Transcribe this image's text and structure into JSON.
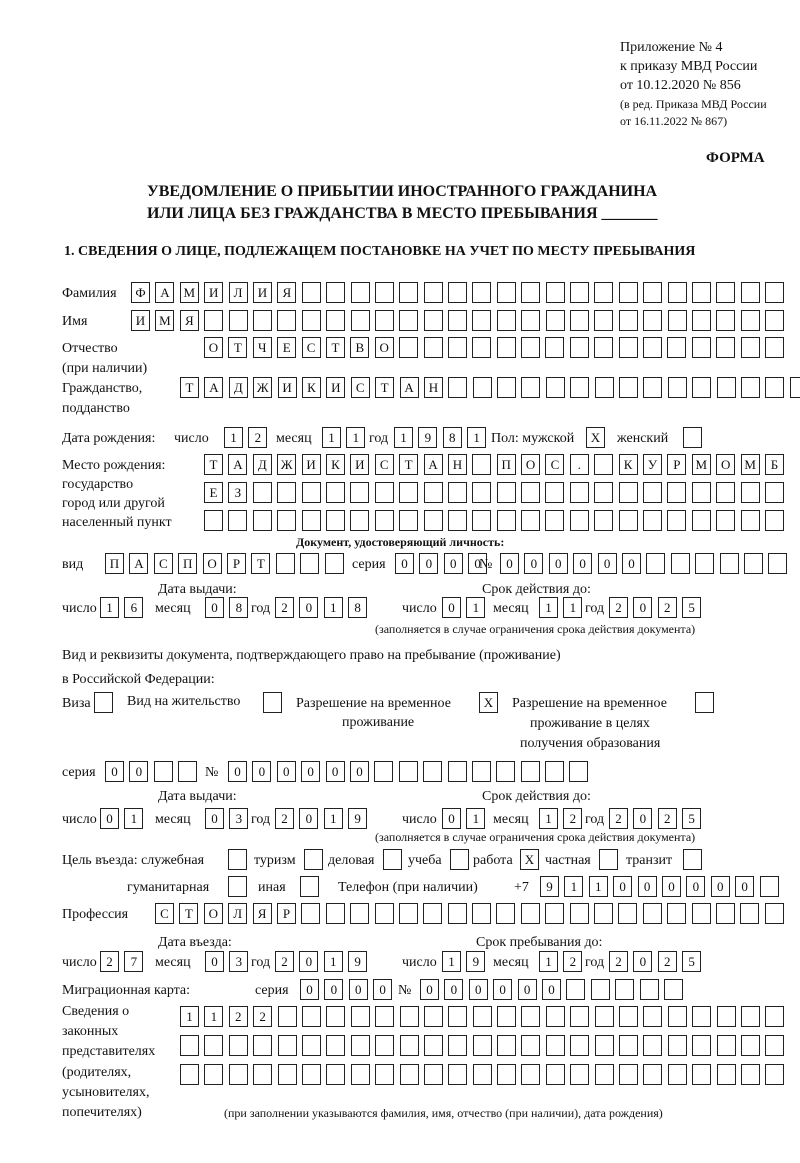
{
  "header": {
    "appendix": "Приложение № 4",
    "order": "к приказу МВД России",
    "order_date": "от 10.12.2020 № 856",
    "revision_1": "(в ред. Приказа МВД России",
    "revision_2": "от 16.11.2022 № 867)",
    "form_label": "ФОРМА",
    "title_1": "УВЕДОМЛЕНИЕ О ПРИБЫТИИ ИНОСТРАННОГО ГРАЖДАНИНА",
    "title_2": "ИЛИ ЛИЦА БЕЗ ГРАЖДАНСТВА В МЕСТО ПРЕБЫВАНИЯ _______"
  },
  "section1": {
    "heading": "1. СВЕДЕНИЯ О ЛИЦЕ, ПОДЛЕЖАЩЕМ ПОСТАНОВКЕ НА УЧЕТ ПО МЕСТУ ПРЕБЫВАНИЯ",
    "surname_label": "Фамилия",
    "surname": [
      "Ф",
      "А",
      "М",
      "И",
      "Л",
      "И",
      "Я",
      "",
      "",
      "",
      "",
      "",
      "",
      "",
      "",
      "",
      "",
      "",
      "",
      "",
      "",
      "",
      "",
      "",
      "",
      "",
      ""
    ],
    "name_label": "Имя",
    "name": [
      "И",
      "М",
      "Я",
      "",
      "",
      "",
      "",
      "",
      "",
      "",
      "",
      "",
      "",
      "",
      "",
      "",
      "",
      "",
      "",
      "",
      "",
      "",
      "",
      "",
      "",
      "",
      ""
    ],
    "patronymic_label_1": "Отчество",
    "patronymic_label_2": "(при наличии)",
    "patronymic": [
      "О",
      "Т",
      "Ч",
      "Е",
      "С",
      "Т",
      "В",
      "О",
      "",
      "",
      "",
      "",
      "",
      "",
      "",
      "",
      "",
      "",
      "",
      "",
      "",
      "",
      "",
      ""
    ],
    "citizenship_label_1": "Гражданство,",
    "citizenship_label_2": "подданство",
    "citizenship": [
      "Т",
      "А",
      "Д",
      "Ж",
      "И",
      "К",
      "И",
      "С",
      "Т",
      "А",
      "Н",
      "",
      "",
      "",
      "",
      "",
      "",
      "",
      "",
      "",
      "",
      "",
      "",
      "",
      "",
      ""
    ],
    "birth_date_label": "Дата рождения:",
    "day_label": "число",
    "month_label": "месяц",
    "year_label": "год",
    "birth_day": [
      "1",
      "2"
    ],
    "birth_month": [
      "1",
      "1"
    ],
    "birth_year": [
      "1",
      "9",
      "8",
      "1"
    ],
    "sex_label": "Пол: мужской",
    "male": "X",
    "female_label": "женский",
    "female": "",
    "birthplace_label_1": "Место рождения:",
    "birthplace_label_2": "государство",
    "birthplace_label_3": "город или другой",
    "birthplace_label_4": "населенный пункт",
    "birthplace_row1": [
      "Т",
      "А",
      "Д",
      "Ж",
      "И",
      "К",
      "И",
      "С",
      "Т",
      "А",
      "Н",
      "",
      "П",
      "О",
      "С",
      ".",
      "",
      "К",
      "У",
      "Р",
      "М",
      "О",
      "М",
      "Б"
    ],
    "birthplace_row2": [
      "Е",
      "З",
      "",
      "",
      "",
      "",
      "",
      "",
      "",
      "",
      "",
      "",
      "",
      "",
      "",
      "",
      "",
      "",
      "",
      "",
      "",
      "",
      "",
      ""
    ],
    "birthplace_row3": [
      "",
      "",
      "",
      "",
      "",
      "",
      "",
      "",
      "",
      "",
      "",
      "",
      "",
      "",
      "",
      "",
      "",
      "",
      "",
      "",
      "",
      "",
      "",
      ""
    ],
    "id_doc": {
      "heading": "Документ, удостоверяющий личность:",
      "kind_label": "вид",
      "kind": [
        "П",
        "А",
        "С",
        "П",
        "О",
        "Р",
        "Т",
        "",
        "",
        ""
      ],
      "series_label": "серия",
      "series": [
        "0",
        "0",
        "0",
        "0"
      ],
      "number_label": "№",
      "number": [
        "0",
        "0",
        "0",
        "0",
        "0",
        "0",
        "",
        "",
        "",
        "",
        "",
        ""
      ],
      "issue_label": "Дата выдачи:",
      "issue_day": [
        "1",
        "6"
      ],
      "issue_month": [
        "0",
        "8"
      ],
      "issue_year": [
        "2",
        "0",
        "1",
        "8"
      ],
      "valid_label": "Срок действия до:",
      "valid_day": [
        "0",
        "1"
      ],
      "valid_month": [
        "1",
        "1"
      ],
      "valid_year": [
        "2",
        "0",
        "2",
        "5"
      ],
      "note": "(заполняется в случае ограничения срока действия документа)"
    },
    "right_doc": {
      "heading_1": "Вид и реквизиты документа, подтверждающего право на пребывание (проживание)",
      "heading_2": "в Российской Федерации:",
      "visa_label": "Виза",
      "visa": "",
      "residence_label": "Вид на жительство",
      "residence": "",
      "temp_label_1": "Разрешение на временное",
      "temp_label_2": "проживание",
      "temp": "X",
      "edu_label_1": "Разрешение на временное",
      "edu_label_2": "проживание в целях",
      "edu_label_3": "получения образования",
      "edu": "",
      "series_label": "серия",
      "series": [
        "0",
        "0",
        "",
        ""
      ],
      "number_label": "№",
      "number": [
        "0",
        "0",
        "0",
        "0",
        "0",
        "0",
        "",
        "",
        "",
        "",
        "",
        "",
        "",
        "",
        ""
      ],
      "issue_label": "Дата выдачи:",
      "issue_day": [
        "0",
        "1"
      ],
      "issue_month": [
        "0",
        "3"
      ],
      "issue_year": [
        "2",
        "0",
        "1",
        "9"
      ],
      "valid_label": "Срок действия до:",
      "valid_day": [
        "0",
        "1"
      ],
      "valid_month": [
        "1",
        "2"
      ],
      "valid_year": [
        "2",
        "0",
        "2",
        "5"
      ],
      "note": "(заполняется в случае ограничения срока действия документа)"
    },
    "purpose": {
      "label": "Цель въезда: служебная",
      "service": "",
      "tourism_label": "туризм",
      "tourism": "",
      "business_label": "деловая",
      "business": "",
      "study_label": "учеба",
      "study": "",
      "work_label": "работа",
      "work": "X",
      "private_label": "частная",
      "private": "",
      "transit_label": "транзит",
      "transit": "",
      "humanitarian_label": "гуманитарная",
      "humanitarian": "",
      "other_label": "иная",
      "other": ""
    },
    "phone_label": "Телефон (при наличии)",
    "phone_prefix": "+7",
    "phone": [
      "9",
      "1",
      "1",
      "0",
      "0",
      "0",
      "0",
      "0",
      "0",
      ""
    ],
    "profession_label": "Профессия",
    "profession": [
      "С",
      "Т",
      "О",
      "Л",
      "Я",
      "Р",
      "",
      "",
      "",
      "",
      "",
      "",
      "",
      "",
      "",
      "",
      "",
      "",
      "",
      "",
      "",
      "",
      "",
      "",
      "",
      ""
    ],
    "entry_label": "Дата въезда:",
    "entry_day": [
      "2",
      "7"
    ],
    "entry_month": [
      "0",
      "3"
    ],
    "entry_year": [
      "2",
      "0",
      "1",
      "9"
    ],
    "stay_label": "Срок пребывания до:",
    "stay_day": [
      "1",
      "9"
    ],
    "stay_month": [
      "1",
      "2"
    ],
    "stay_year": [
      "2",
      "0",
      "2",
      "5"
    ],
    "migration_label": "Миграционная карта:",
    "migration_series_label": "серия",
    "migration_series": [
      "0",
      "0",
      "0",
      "0"
    ],
    "migration_number_label": "№",
    "migration_number": [
      "0",
      "0",
      "0",
      "0",
      "0",
      "0",
      "",
      "",
      "",
      "",
      ""
    ],
    "guardians_label": [
      "Сведения о",
      "законных",
      "представителях",
      "(родителях,",
      "усыновителях,",
      "попечителях)"
    ],
    "guardians_row1": [
      "1",
      "1",
      "2",
      "2",
      "",
      "",
      "",
      "",
      "",
      "",
      "",
      "",
      "",
      "",
      "",
      "",
      "",
      "",
      "",
      "",
      "",
      "",
      "",
      "",
      ""
    ],
    "guardians_row2": [
      "",
      "",
      "",
      "",
      "",
      "",
      "",
      "",
      "",
      "",
      "",
      "",
      "",
      "",
      "",
      "",
      "",
      "",
      "",
      "",
      "",
      "",
      "",
      "",
      ""
    ],
    "guardians_row3": [
      "",
      "",
      "",
      "",
      "",
      "",
      "",
      "",
      "",
      "",
      "",
      "",
      "",
      "",
      "",
      "",
      "",
      "",
      "",
      "",
      "",
      "",
      "",
      "",
      ""
    ],
    "guardians_note": "(при заполнении указываются фамилия, имя, отчество (при наличии), дата рождения)"
  }
}
